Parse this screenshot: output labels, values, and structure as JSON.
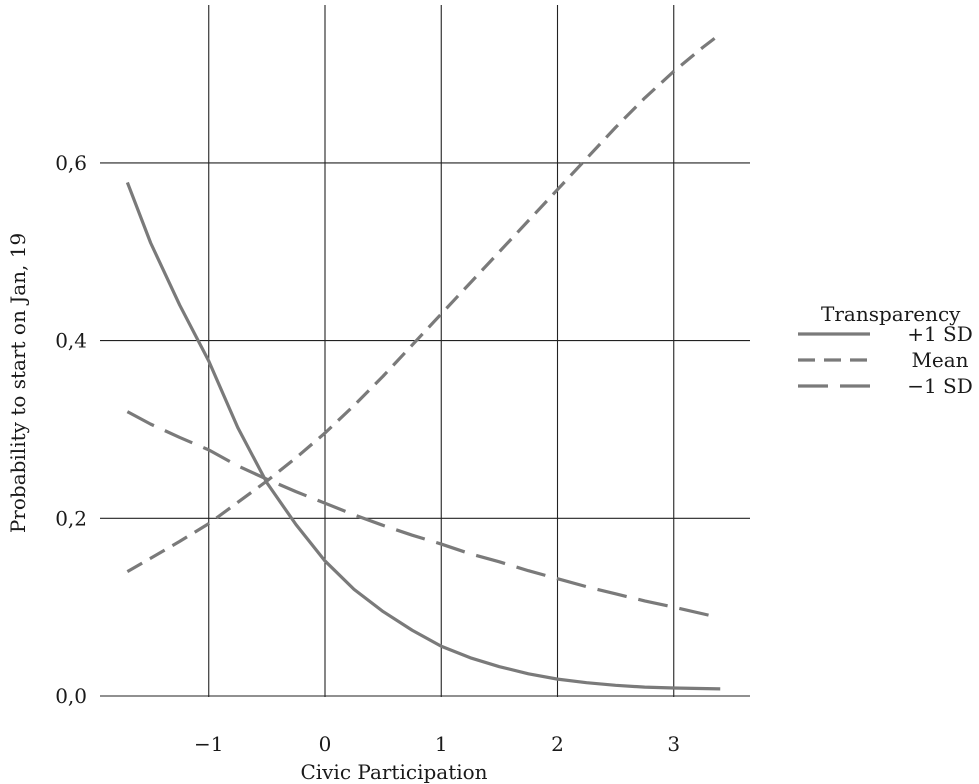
{
  "chart_data": {
    "type": "line",
    "title": "",
    "xlabel": "Civic Participation",
    "ylabel": "Probability to start on Jan, 19",
    "xlim": [
      -1.75,
      3.6
    ],
    "ylim": [
      0.0,
      0.75
    ],
    "x_ticks": [
      -1,
      0,
      1,
      2,
      3
    ],
    "x_tick_labels": [
      "−1",
      "0",
      "1",
      "2",
      "3"
    ],
    "y_ticks": [
      0.0,
      0.2,
      0.4,
      0.6
    ],
    "y_tick_labels": [
      "0,0",
      "0,2",
      "0,4",
      "0,6"
    ],
    "grid": true,
    "legend": {
      "title": "Transparency",
      "position": "right"
    },
    "series": [
      {
        "name": "+1 SD",
        "style": "solid",
        "color": "#7a7a7a",
        "points": [
          [
            -1.7,
            0.578
          ],
          [
            -1.5,
            0.51
          ],
          [
            -1.25,
            0.44
          ],
          [
            -1.0,
            0.377
          ],
          [
            -0.75,
            0.302
          ],
          [
            -0.5,
            0.24
          ],
          [
            -0.25,
            0.193
          ],
          [
            0.0,
            0.152
          ],
          [
            0.25,
            0.12
          ],
          [
            0.5,
            0.095
          ],
          [
            0.75,
            0.074
          ],
          [
            1.0,
            0.056
          ],
          [
            1.25,
            0.043
          ],
          [
            1.5,
            0.033
          ],
          [
            1.75,
            0.025
          ],
          [
            2.0,
            0.019
          ],
          [
            2.25,
            0.015
          ],
          [
            2.5,
            0.012
          ],
          [
            2.75,
            0.01
          ],
          [
            3.0,
            0.009
          ],
          [
            3.4,
            0.008
          ]
        ]
      },
      {
        "name": "Mean",
        "style": "dashed",
        "color": "#7a7a7a",
        "points": [
          [
            -1.7,
            0.14
          ],
          [
            -1.5,
            0.155
          ],
          [
            -1.25,
            0.174
          ],
          [
            -1.0,
            0.194
          ],
          [
            -0.75,
            0.218
          ],
          [
            -0.5,
            0.242
          ],
          [
            -0.25,
            0.268
          ],
          [
            0.0,
            0.296
          ],
          [
            0.25,
            0.327
          ],
          [
            0.5,
            0.36
          ],
          [
            0.75,
            0.395
          ],
          [
            1.0,
            0.43
          ],
          [
            1.25,
            0.465
          ],
          [
            1.5,
            0.5
          ],
          [
            1.75,
            0.535
          ],
          [
            2.0,
            0.57
          ],
          [
            2.25,
            0.605
          ],
          [
            2.5,
            0.64
          ],
          [
            2.75,
            0.673
          ],
          [
            3.0,
            0.703
          ],
          [
            3.25,
            0.73
          ],
          [
            3.4,
            0.745
          ]
        ]
      },
      {
        "name": "−1 SD",
        "style": "longdash",
        "color": "#7a7a7a",
        "points": [
          [
            -1.7,
            0.32
          ],
          [
            -1.5,
            0.306
          ],
          [
            -1.25,
            0.291
          ],
          [
            -1.0,
            0.277
          ],
          [
            -0.75,
            0.259
          ],
          [
            -0.5,
            0.244
          ],
          [
            -0.25,
            0.23
          ],
          [
            0.0,
            0.217
          ],
          [
            0.25,
            0.204
          ],
          [
            0.5,
            0.192
          ],
          [
            0.75,
            0.181
          ],
          [
            1.0,
            0.171
          ],
          [
            1.25,
            0.16
          ],
          [
            1.5,
            0.151
          ],
          [
            1.75,
            0.141
          ],
          [
            2.0,
            0.132
          ],
          [
            2.25,
            0.123
          ],
          [
            2.5,
            0.115
          ],
          [
            2.75,
            0.107
          ],
          [
            3.0,
            0.1
          ],
          [
            3.4,
            0.088
          ]
        ]
      }
    ]
  }
}
